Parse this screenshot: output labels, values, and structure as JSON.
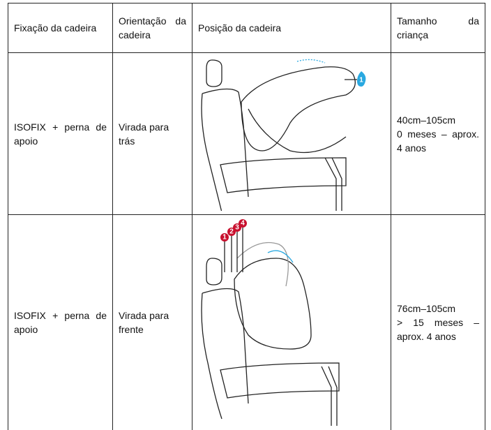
{
  "table": {
    "header": [
      "Fixação da cadeira",
      "Orientação da cadeira",
      "Posição da cadeira",
      "Tamanho da criança"
    ],
    "rows": [
      {
        "fixation": "ISOFIX + perna de apoio",
        "orientation": "Virada para trás",
        "badges": [
          "1"
        ],
        "size": [
          "40cm–105cm",
          "0 meses – aprox. 4 anos"
        ]
      },
      {
        "fixation": "ISOFIX + perna de apoio",
        "orientation": "Virada para frente",
        "badges": [
          "1",
          "2",
          "3",
          "4"
        ],
        "size": [
          "76cm–105cm",
          "> 15 meses – aprox. 4 anos"
        ]
      }
    ]
  }
}
